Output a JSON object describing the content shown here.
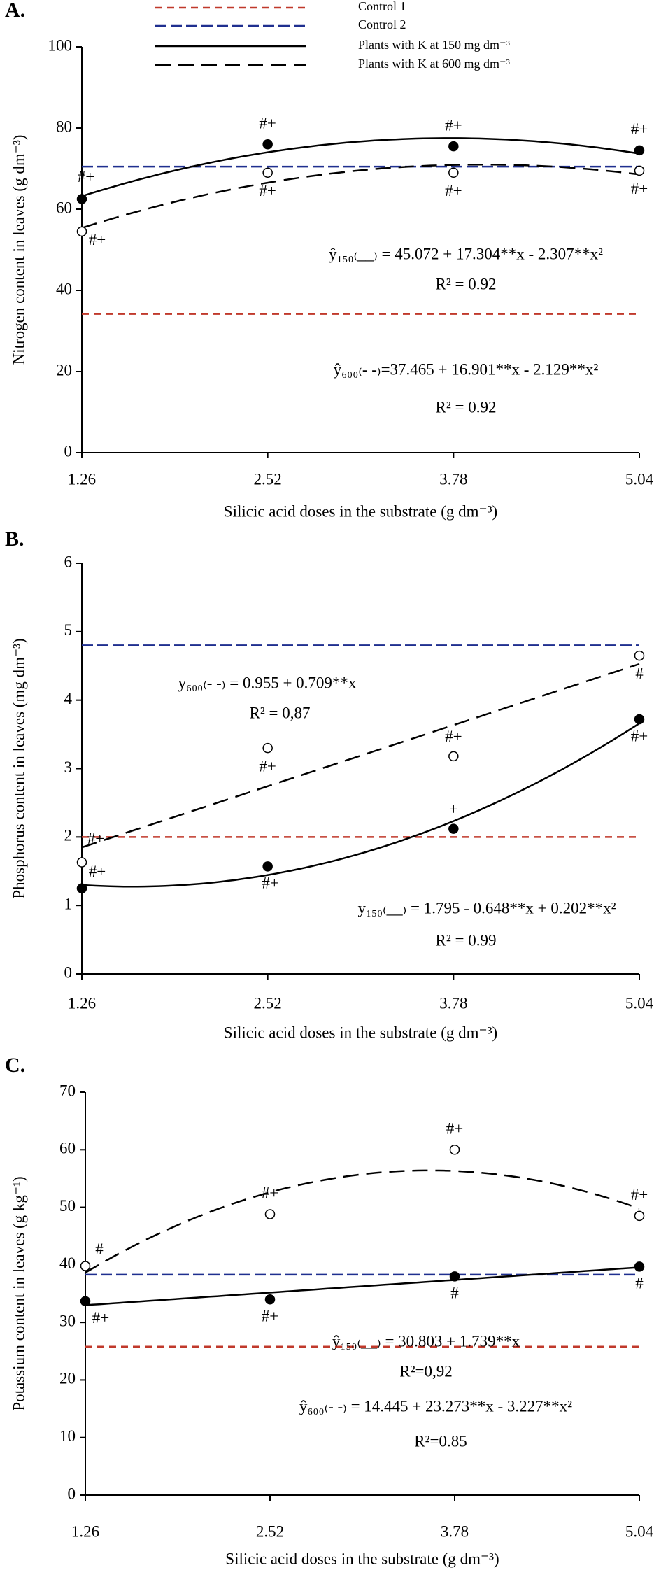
{
  "chart_data": [
    {
      "type": "scatter",
      "panel": "A.",
      "ylabel": "Nitrogen content in leaves (g dm⁻³)",
      "xlabel": "Silicic acid doses in the substrate (g dm⁻³)",
      "xlim": [
        1.26,
        5.04
      ],
      "xticks": [
        1.26,
        2.52,
        3.78,
        5.04
      ],
      "ylim": [
        0,
        100
      ],
      "yticks": [
        0,
        20,
        40,
        60,
        80,
        100
      ],
      "legend": true,
      "series": [
        {
          "name": "Control 1",
          "color": "#c0392b",
          "line_style": "short-dashed",
          "value": 34.2
        },
        {
          "name": "Control 2",
          "color": "#1f2f8f",
          "line_style": "dashed",
          "value": 70.5
        },
        {
          "name": "Plants with K at 150 mg dm⁻³",
          "color": "#000000",
          "line_style": "solid",
          "marker": "filled",
          "values": [
            62.5,
            76,
            75.5,
            74.5
          ],
          "fit": [
            45.072,
            17.304,
            -2.307
          ],
          "point_labels": [
            "#+",
            "#+",
            "#+",
            "#+"
          ]
        },
        {
          "name": "Plants with K at 600 mg dm⁻³",
          "color": "#000000",
          "line_style": "long-dashed",
          "marker": "open",
          "values": [
            54.5,
            69,
            69,
            69.5
          ],
          "fit": [
            37.465,
            16.901,
            -2.129
          ],
          "point_labels": [
            "#+",
            "#+",
            "#+",
            "#+"
          ]
        }
      ],
      "annotations": [
        "ŷ₁₅₀₍__₎ = 45.072 + 17.304**x - 2.307**x²",
        "R² = 0.92",
        "ŷ₆₀₀₍- -₎=37.465 + 16.901**x - 2.129**x²",
        "R² = 0.92"
      ]
    },
    {
      "type": "scatter",
      "panel": "B.",
      "ylabel": "Phosphorus content in leaves (mg dm⁻³)",
      "xlabel": "Silicic acid doses in the substrate (g dm⁻³)",
      "xlim": [
        1.26,
        5.04
      ],
      "xticks": [
        1.26,
        2.52,
        3.78,
        5.04
      ],
      "ylim": [
        0,
        6
      ],
      "yticks": [
        0,
        1,
        2,
        3,
        4,
        5,
        6
      ],
      "legend": false,
      "series": [
        {
          "color": "#c0392b",
          "line_style": "short-dashed",
          "value": 2.0
        },
        {
          "color": "#1f2f8f",
          "line_style": "dashed",
          "value": 4.8
        },
        {
          "color": "#000000",
          "line_style": "solid",
          "marker": "filled",
          "values": [
            1.25,
            1.57,
            2.12,
            3.72
          ],
          "fit": [
            1.795,
            -0.648,
            0.202
          ],
          "point_labels": [
            "#+",
            "#+",
            "+",
            "#+"
          ]
        },
        {
          "color": "#000000",
          "line_style": "long-dashed",
          "marker": "open",
          "values": [
            1.63,
            3.3,
            3.18,
            4.65
          ],
          "fit": [
            0.955,
            0.709
          ],
          "point_labels": [
            "#+",
            "#+",
            "#+",
            "#"
          ]
        }
      ],
      "annotations": [
        "y₆₀₀₍- -₎ = 0.955 + 0.709**x",
        "R² = 0,87",
        "y₁₅₀₍__₎ = 1.795 - 0.648**x + 0.202**x²",
        "R² = 0.99"
      ]
    },
    {
      "type": "scatter",
      "panel": "C.",
      "ylabel": "Potassium content in leaves (g kg⁻¹)",
      "xlabel": "Silicic acid doses in the substrate (g dm⁻³)",
      "xlim": [
        1.26,
        5.04
      ],
      "xticks": [
        1.26,
        2.52,
        3.78,
        5.04
      ],
      "ylim": [
        0,
        70
      ],
      "yticks": [
        0,
        10,
        20,
        30,
        40,
        50,
        60,
        70
      ],
      "legend": false,
      "series": [
        {
          "color": "#c0392b",
          "line_style": "short-dashed",
          "value": 25.8
        },
        {
          "color": "#1f2f8f",
          "line_style": "dashed",
          "value": 38.3
        },
        {
          "color": "#000000",
          "line_style": "solid",
          "marker": "filled",
          "values": [
            33.7,
            34,
            38,
            39.7
          ],
          "fit": [
            30.803,
            1.739
          ],
          "point_labels": [
            "#+",
            "#+",
            "#",
            "#"
          ]
        },
        {
          "color": "#000000",
          "line_style": "long-dashed",
          "marker": "open",
          "values": [
            39.8,
            48.8,
            60,
            48.5
          ],
          "fit": [
            14.445,
            23.273,
            -3.227
          ],
          "point_labels": [
            "#",
            "#+",
            "#+",
            "#+"
          ]
        }
      ],
      "annotations": [
        "ŷ₁₅₀₍__₎ = 30.803 + 1.739**x",
        "R²=0,92",
        "ŷ₆₀₀₍- -₎ = 14.445 + 23.273**x - 3.227**x²",
        "R²=0.85"
      ]
    }
  ]
}
